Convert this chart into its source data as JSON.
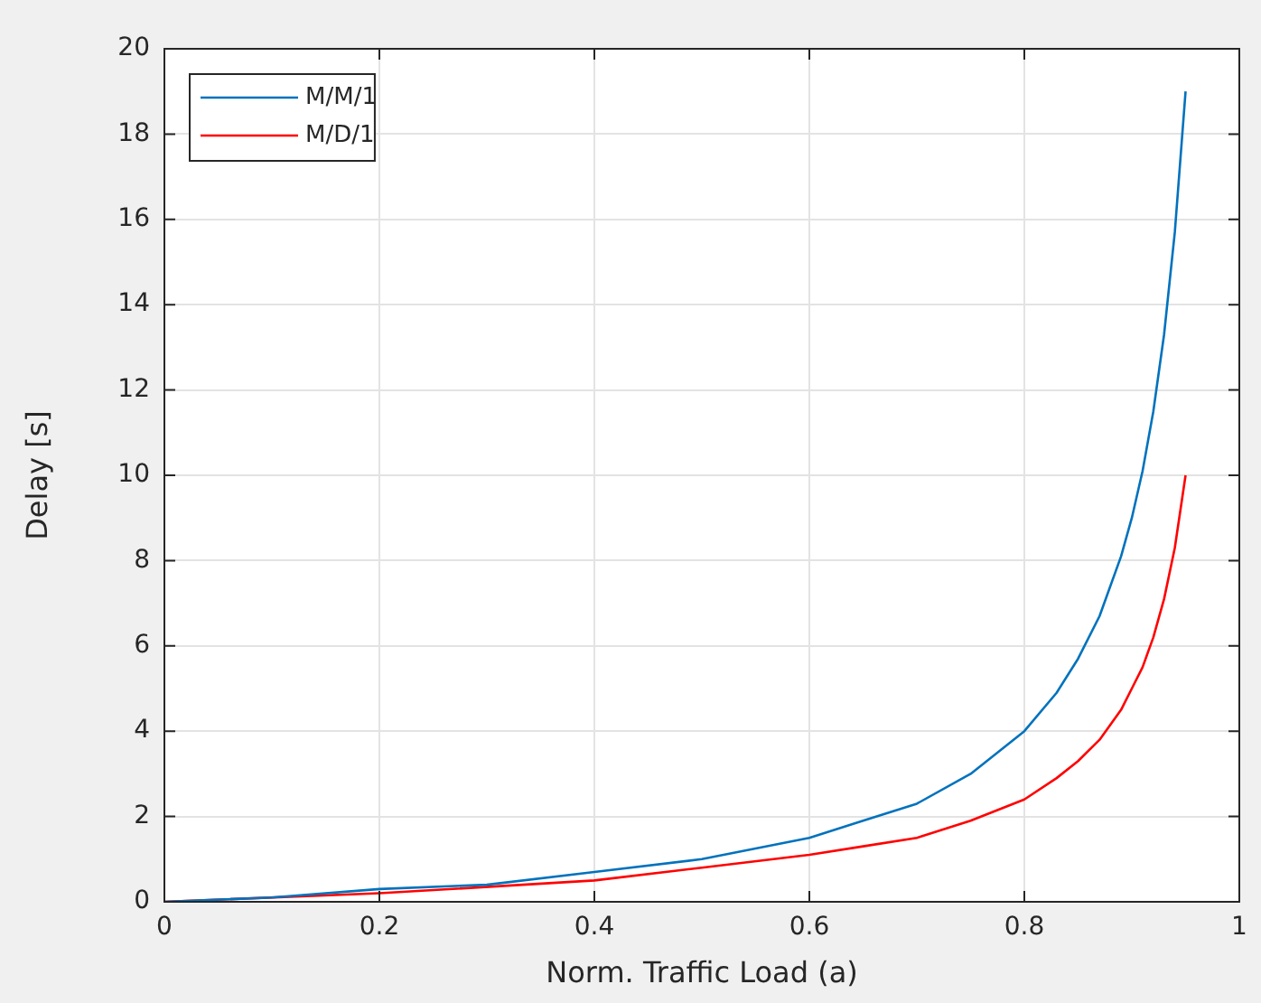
{
  "chart_data": {
    "type": "line",
    "xlabel": "Norm. Traffic Load (a)",
    "ylabel": "Delay [s]",
    "x": [
      0,
      0.1,
      0.2,
      0.3,
      0.4,
      0.5,
      0.6,
      0.65,
      0.7,
      0.75,
      0.8,
      0.83,
      0.85,
      0.87,
      0.89,
      0.9,
      0.91,
      0.92,
      0.93,
      0.94,
      0.95
    ],
    "series": [
      {
        "name": "M/M/1",
        "color": "#0072bd",
        "values": [
          0,
          0.1,
          0.3,
          0.4,
          0.7,
          1,
          1.5,
          1.9,
          2.3,
          3,
          4,
          4.9,
          5.7,
          6.7,
          8.1,
          9,
          10.1,
          11.5,
          13.3,
          15.7,
          19
        ]
      },
      {
        "name": "M/D/1",
        "color": "#ff0000",
        "x": [
          0,
          0.2,
          0.4,
          0.5,
          0.6,
          0.65,
          0.7,
          0.75,
          0.8,
          0.83,
          0.85,
          0.87,
          0.89,
          0.9,
          0.91,
          0.92,
          0.93,
          0.94,
          0.95
        ],
        "values": [
          0,
          0.2,
          0.5,
          0.8,
          1.1,
          1.3,
          1.5,
          1.9,
          2.4,
          2.9,
          3.3,
          3.8,
          4.5,
          5,
          5.5,
          6.2,
          7.1,
          8.3,
          10
        ]
      }
    ],
    "xlim": [
      0,
      1
    ],
    "xticks": [
      0,
      0.2,
      0.4,
      0.6,
      0.8,
      1
    ],
    "ylim": [
      0,
      20
    ],
    "yticks": [
      0,
      2,
      4,
      6,
      8,
      10,
      12,
      14,
      16,
      18,
      20
    ],
    "grid": true,
    "legend": "top left",
    "marker": "none",
    "line_style": "solid"
  }
}
